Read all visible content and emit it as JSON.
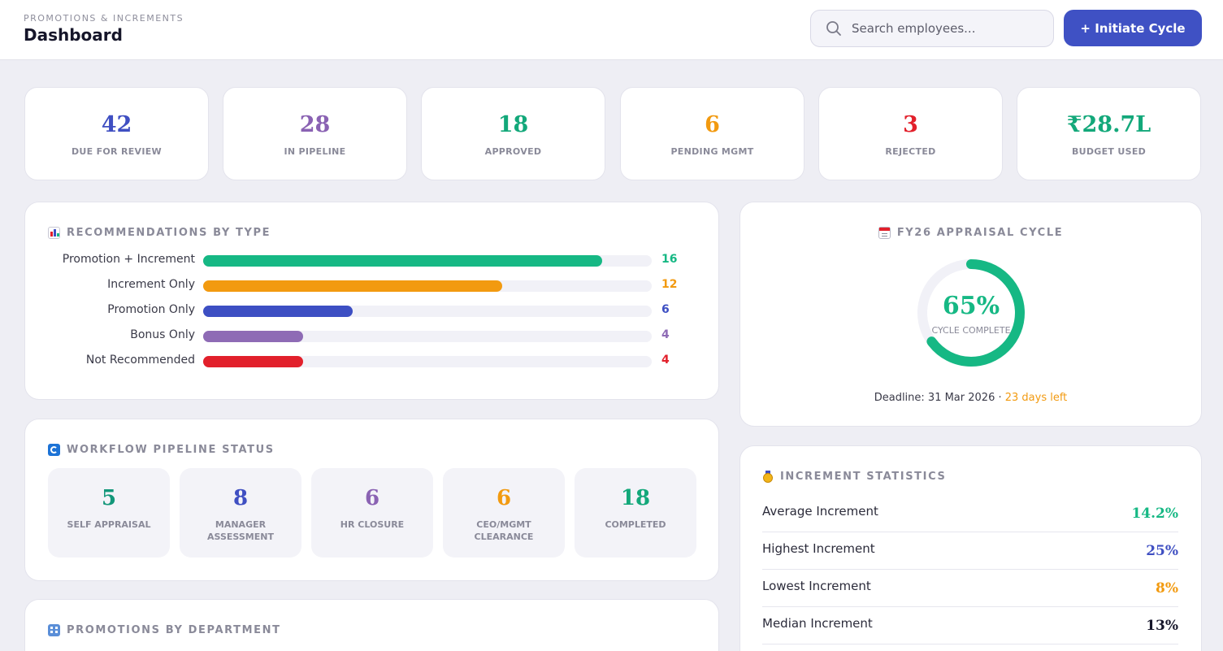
{
  "header": {
    "breadcrumb": "PROMOTIONS & INCREMENTS",
    "title": "Dashboard",
    "search_placeholder": "Search employees...",
    "initiate_label": "+ Initiate Cycle"
  },
  "kpis": [
    {
      "value": "42",
      "label": "DUE FOR REVIEW",
      "color": "#3f4fc2"
    },
    {
      "value": "28",
      "label": "IN PIPELINE",
      "color": "#8a62b3"
    },
    {
      "value": "18",
      "label": "APPROVED",
      "color": "#13a87a"
    },
    {
      "value": "6",
      "label": "PENDING MGMT",
      "color": "#f29a10"
    },
    {
      "value": "3",
      "label": "REJECTED",
      "color": "#e2202b"
    },
    {
      "value": "₹28.7L",
      "label": "BUDGET USED",
      "color": "#13a87a"
    }
  ],
  "recommendations": {
    "title": "RECOMMENDATIONS BY TYPE",
    "icon": "bar-chart-icon",
    "max": 18,
    "items": [
      {
        "label": "Promotion + Increment",
        "value": 16,
        "color": "#16b884"
      },
      {
        "label": "Increment Only",
        "value": 12,
        "color": "#f29a10"
      },
      {
        "label": "Promotion Only",
        "value": 6,
        "color": "#3d4fc3"
      },
      {
        "label": "Bonus Only",
        "value": 4,
        "color": "#8e6bb5"
      },
      {
        "label": "Not Recommended",
        "value": 4,
        "color": "#e2202b"
      }
    ]
  },
  "cycle": {
    "title": "FY26 APPRAISAL CYCLE",
    "icon": "calendar-icon",
    "percent_value": 65,
    "percent_text": "65%",
    "caption": "CYCLE COMPLETE",
    "deadline": "Deadline: 31 Mar 2026 · ",
    "days_left": "23 days left",
    "color": "#16b884"
  },
  "workflow": {
    "title": "WORKFLOW PIPELINE STATUS",
    "icon": "refresh-icon",
    "stages": [
      {
        "value": "5",
        "label": "SELF APPRAISAL",
        "color": "#13977a"
      },
      {
        "value": "8",
        "label": "MANAGER ASSESSMENT",
        "color": "#3f4fc2"
      },
      {
        "value": "6",
        "label": "HR CLOSURE",
        "color": "#8a62b3"
      },
      {
        "value": "6",
        "label": "CEO/MGMT CLEARANCE",
        "color": "#f29a10"
      },
      {
        "value": "18",
        "label": "COMPLETED",
        "color": "#13a87a"
      }
    ]
  },
  "stats": {
    "title": "INCREMENT STATISTICS",
    "icon": "medal-icon",
    "rows": [
      {
        "label": "Average Increment",
        "value": "14.2%",
        "color": "#16b884"
      },
      {
        "label": "Highest Increment",
        "value": "25%",
        "color": "#3f4fc2"
      },
      {
        "label": "Lowest Increment",
        "value": "8%",
        "color": "#f29a10"
      },
      {
        "label": "Median Increment",
        "value": "13%",
        "color": "#16162a"
      }
    ]
  },
  "departments": {
    "title": "PROMOTIONS BY DEPARTMENT",
    "icon": "building-icon"
  }
}
